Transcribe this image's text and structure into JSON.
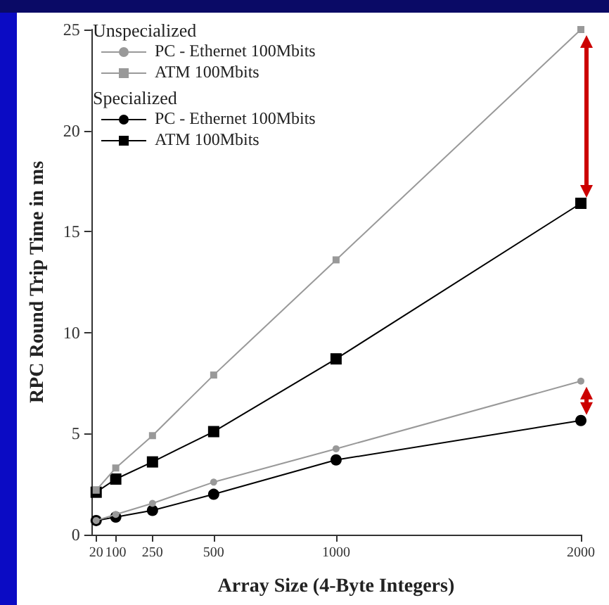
{
  "chart_data": {
    "type": "line",
    "xlabel": "Array Size (4-Byte Integers)",
    "ylabel": "RPC Round Trip Time in ms",
    "x": [
      20,
      100,
      250,
      500,
      1000,
      2000
    ],
    "series": [
      {
        "name": "PC - Ethernet 100Mbits",
        "color": "#999999",
        "marker": "circle",
        "values": [
          0.7,
          1.0,
          1.55,
          2.6,
          4.25,
          7.6
        ]
      },
      {
        "name": "ATM 100Mbits",
        "color": "#999999",
        "marker": "square",
        "values": [
          2.2,
          3.3,
          4.9,
          7.9,
          13.6,
          25.0
        ]
      },
      {
        "name": "PC - Ethernet 100Mbits",
        "color": "#000000",
        "marker": "circle",
        "values": [
          0.7,
          0.87,
          1.2,
          2.0,
          3.7,
          5.65
        ]
      },
      {
        "name": "ATM 100Mbits",
        "color": "#000000",
        "marker": "square",
        "values": [
          2.1,
          2.75,
          3.6,
          5.1,
          8.7,
          16.4
        ]
      }
    ],
    "annotations": [
      "Unspecialized",
      "Specialized"
    ],
    "xlim": [
      0,
      2000
    ],
    "xticks": [
      20,
      100,
      250,
      500,
      1000,
      2000
    ],
    "ylim": [
      0,
      25
    ],
    "yticks": [
      0,
      5,
      10,
      15,
      20,
      25
    ],
    "grid": false,
    "legend": "top left",
    "line_style": "solid"
  }
}
